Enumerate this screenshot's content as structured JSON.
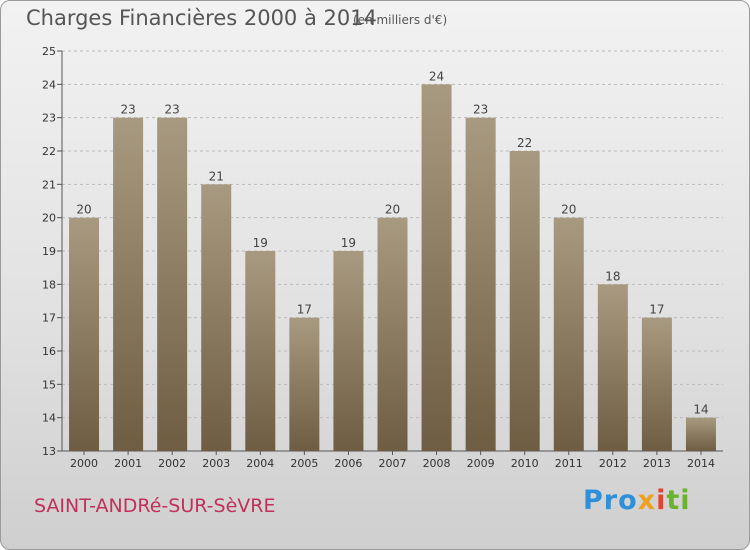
{
  "header": {
    "title": "Charges Financières 2000 à 2014",
    "subtitle": "(en milliers d'€)"
  },
  "footer": {
    "city": "SAINT-ANDRé-SUR-SèVRE",
    "logo_parts": [
      "Pro",
      "x",
      "i",
      "ti"
    ]
  },
  "colors": {
    "bar_top": "#a89a80",
    "bar_bottom": "#6e5d42",
    "grid": "#bbbbbb",
    "city_text": "#c2305a"
  },
  "chart_data": {
    "type": "bar",
    "title": "Charges Financières 2000 à 2014",
    "subtitle": "(en milliers d'€)",
    "xlabel": "",
    "ylabel": "",
    "categories": [
      "2000",
      "2001",
      "2002",
      "2003",
      "2004",
      "2005",
      "2006",
      "2007",
      "2008",
      "2009",
      "2010",
      "2011",
      "2012",
      "2013",
      "2014"
    ],
    "values": [
      20,
      23,
      23,
      21,
      19,
      17,
      19,
      20,
      24,
      23,
      22,
      20,
      18,
      17,
      14
    ],
    "ylim": [
      13,
      25
    ],
    "yticks": [
      13,
      14,
      15,
      16,
      17,
      18,
      19,
      20,
      21,
      22,
      23,
      24,
      25
    ],
    "grid": true
  }
}
